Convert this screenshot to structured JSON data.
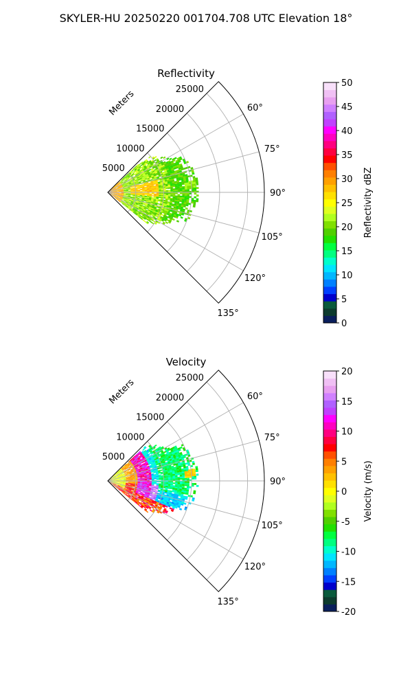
{
  "suptitle": "SKYLER-HU  20250220  001704.708 UTC Elevation 18°",
  "chart_data": [
    {
      "type": "heatmap",
      "projection": "polar-sector",
      "title": "Reflectivity",
      "range_label": "Meters",
      "range_ticks": [
        5000,
        10000,
        15000,
        20000,
        25000
      ],
      "range_ylim": [
        0,
        28000
      ],
      "azimuth_range": [
        45,
        135
      ],
      "azimuth_ticks": [
        60,
        75,
        90,
        105,
        120,
        135
      ],
      "azimuth_tick_labels": [
        "60°",
        "75°",
        "90°",
        "105°",
        "120°",
        "135°"
      ],
      "range_tick_labels": [
        "5000",
        "10000",
        "15000",
        "20000",
        "25000"
      ],
      "grid": true,
      "colorbar": {
        "label": "Reflectivity dBZ",
        "vmin": 0,
        "vmax": 50,
        "ticks": [
          0,
          5,
          10,
          15,
          20,
          25,
          30,
          35,
          40,
          45,
          50
        ],
        "tick_labels": [
          "0",
          "5",
          "10",
          "15",
          "20",
          "25",
          "30",
          "35",
          "40",
          "45",
          "50"
        ],
        "colors": [
          "#0a1f5c",
          "#0d3b2e",
          "#0a5a3c",
          "#0000cc",
          "#0040ff",
          "#0080ff",
          "#00b7ff",
          "#00e5ff",
          "#00ffcc",
          "#00ff80",
          "#00ff40",
          "#22e000",
          "#50d000",
          "#80e000",
          "#b0ff20",
          "#e0ff20",
          "#ffff00",
          "#ffe000",
          "#ffc000",
          "#ffa000",
          "#ff7f00",
          "#ff5000",
          "#ff0000",
          "#ff0040",
          "#ff0080",
          "#ff00c0",
          "#ff00ff",
          "#c040ff",
          "#b060ff",
          "#d080ff",
          "#e8a0f0",
          "#f0c0f4",
          "#f8e0fa"
        ]
      }
    },
    {
      "type": "heatmap",
      "projection": "polar-sector",
      "title": "Velocity",
      "range_label": "Meters",
      "range_ticks": [
        5000,
        10000,
        15000,
        20000,
        25000
      ],
      "range_ylim": [
        0,
        28000
      ],
      "azimuth_range": [
        45,
        135
      ],
      "azimuth_ticks": [
        60,
        75,
        90,
        105,
        120,
        135
      ],
      "azimuth_tick_labels": [
        "60°",
        "75°",
        "90°",
        "105°",
        "120°",
        "135°"
      ],
      "range_tick_labels": [
        "5000",
        "10000",
        "15000",
        "20000",
        "25000"
      ],
      "grid": true,
      "colorbar": {
        "label": "Velocity (m/s)",
        "vmin": -20,
        "vmax": 20,
        "ticks": [
          -20,
          -15,
          -10,
          -5,
          0,
          5,
          10,
          15,
          20
        ],
        "tick_labels": [
          "-20",
          "-15",
          "-10",
          "-5",
          "0",
          "5",
          "10",
          "15",
          "20"
        ],
        "colors": [
          "#0a1f5c",
          "#0d3b2e",
          "#0a5a3c",
          "#0000cc",
          "#0040ff",
          "#0080ff",
          "#00b7ff",
          "#00e5ff",
          "#00ffcc",
          "#00ff80",
          "#00ff40",
          "#22e000",
          "#50d000",
          "#80e000",
          "#b0ff20",
          "#e0ff20",
          "#ffff00",
          "#ffe000",
          "#ffc000",
          "#ffa000",
          "#ff7f00",
          "#ff5000",
          "#ff0000",
          "#ff0040",
          "#ff0080",
          "#ff00c0",
          "#ff00ff",
          "#c040ff",
          "#b060ff",
          "#d080ff",
          "#e8a0f0",
          "#f0c0f4",
          "#f8e0fa"
        ]
      }
    }
  ]
}
